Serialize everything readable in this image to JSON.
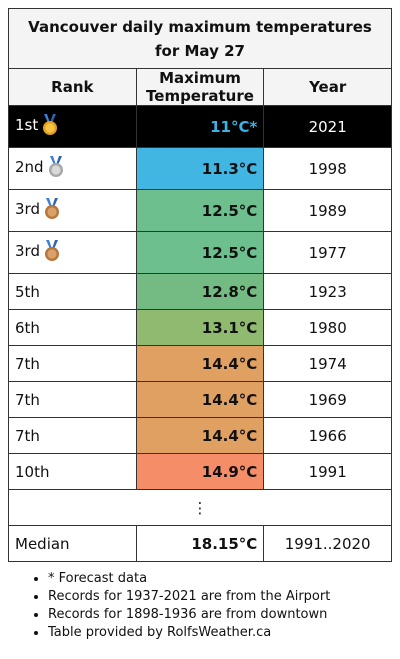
{
  "title": "Vancouver daily maximum temperatures for May 27",
  "headers": {
    "rank": "Rank",
    "temp": "Maximum Temperature",
    "year": "Year"
  },
  "rows": [
    {
      "rank": "1st",
      "medal": "gold",
      "temp": "11°C*",
      "year": "2021",
      "color": "#000000"
    },
    {
      "rank": "2nd",
      "medal": "silver",
      "temp": "11.3°C",
      "year": "1998",
      "color": "#42b6e2"
    },
    {
      "rank": "3rd",
      "medal": "bronze",
      "temp": "12.5°C",
      "year": "1989",
      "color": "#6dbf8e"
    },
    {
      "rank": "3rd",
      "medal": "bronze",
      "temp": "12.5°C",
      "year": "1977",
      "color": "#6dbf8e"
    },
    {
      "rank": "5th",
      "temp": "12.8°C",
      "year": "1923",
      "color": "#74bb83"
    },
    {
      "rank": "6th",
      "temp": "13.1°C",
      "year": "1980",
      "color": "#8fba6f"
    },
    {
      "rank": "7th",
      "temp": "14.4°C",
      "year": "1974",
      "color": "#e0a062"
    },
    {
      "rank": "7th",
      "temp": "14.4°C",
      "year": "1969",
      "color": "#e0a062"
    },
    {
      "rank": "7th",
      "temp": "14.4°C",
      "year": "1966",
      "color": "#e0a062"
    },
    {
      "rank": "10th",
      "temp": "14.9°C",
      "year": "1991",
      "color": "#f58d69"
    }
  ],
  "ellipsis": "⋮",
  "median": {
    "label": "Median",
    "temp": "18.15°C",
    "years": "1991..2020"
  },
  "notes": [
    "* Forecast data",
    "Records for 1937-2021 are from the Airport",
    "Records for 1898-1936 are from downtown",
    "Table provided by RolfsWeather.ca"
  ]
}
